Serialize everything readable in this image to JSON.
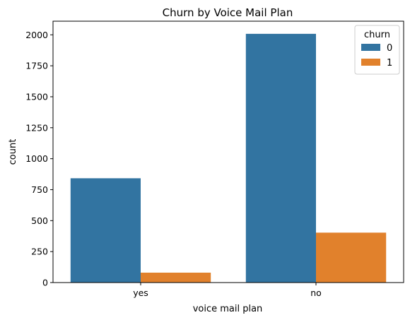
{
  "chart_data": {
    "type": "bar",
    "title": "Churn by Voice Mail Plan",
    "xlabel": "voice mail plan",
    "ylabel": "count",
    "categories": [
      "yes",
      "no"
    ],
    "series": [
      {
        "name": "0",
        "values": [
          842,
          2008
        ],
        "color": "#3274a1"
      },
      {
        "name": "1",
        "values": [
          80,
          403
        ],
        "color": "#e1812c"
      }
    ],
    "ylim": [
      0,
      2110
    ],
    "yticks": [
      0,
      250,
      500,
      750,
      1000,
      1250,
      1500,
      1750,
      2000
    ],
    "grid": false,
    "legend": {
      "title": "churn",
      "position": "top-right"
    }
  }
}
